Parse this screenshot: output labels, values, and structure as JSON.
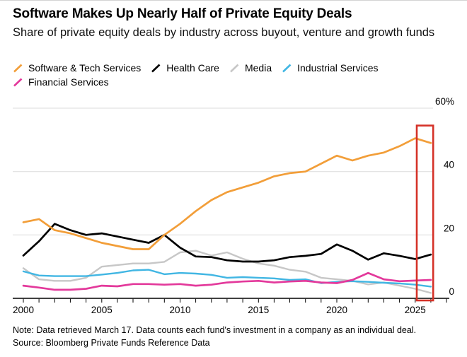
{
  "header": {
    "title": "Software Makes Up Nearly Half of Private Equity Deals",
    "subtitle": "Share of private equity deals by industry across buyout, venture and growth funds"
  },
  "legend": [
    {
      "label": "Software & Tech Services",
      "color": "#F29E39"
    },
    {
      "label": "Health Care",
      "color": "#000000"
    },
    {
      "label": "Media",
      "color": "#C7C7C7"
    },
    {
      "label": "Industrial Services",
      "color": "#41B6E3"
    },
    {
      "label": "Financial Services",
      "color": "#E3399B"
    }
  ],
  "chart_data": {
    "type": "line",
    "x": [
      2000,
      2001,
      2002,
      2003,
      2004,
      2005,
      2006,
      2007,
      2008,
      2009,
      2010,
      2011,
      2012,
      2013,
      2014,
      2015,
      2016,
      2017,
      2018,
      2019,
      2020,
      2021,
      2022,
      2023,
      2024,
      2025,
      2026
    ],
    "series": [
      {
        "name": "Software & Tech Services",
        "color": "#F29E39",
        "width": 2.7,
        "values": [
          24,
          25,
          21.5,
          20.5,
          19,
          17.5,
          16.5,
          15.5,
          15.5,
          20,
          23.5,
          27.5,
          31,
          33.5,
          35,
          36.5,
          38.5,
          39.5,
          40,
          42.5,
          45,
          43.5,
          45,
          46,
          48,
          50.5,
          49
        ]
      },
      {
        "name": "Health Care",
        "color": "#000000",
        "width": 2.7,
        "values": [
          13.5,
          18,
          23.5,
          21.5,
          20,
          20.5,
          19.5,
          18.5,
          17.5,
          20,
          16,
          13.2,
          13,
          12,
          11.6,
          11.6,
          12,
          13,
          13.4,
          14,
          17,
          15,
          12.2,
          14.2,
          13.4,
          12.4,
          13.8
        ]
      },
      {
        "name": "Media",
        "color": "#C7C7C7",
        "width": 2.4,
        "values": [
          9.5,
          6,
          5.5,
          5.5,
          6.5,
          10,
          10.5,
          11,
          11,
          11.5,
          14.5,
          15,
          13.5,
          14.5,
          12.5,
          11,
          10.3,
          9,
          8.4,
          6.5,
          6,
          5.5,
          4.4,
          5,
          4,
          3,
          1.7
        ]
      },
      {
        "name": "Industrial Services",
        "color": "#41B6E3",
        "width": 2.4,
        "values": [
          8.5,
          7.2,
          7,
          7,
          7,
          7.5,
          8,
          8.8,
          9,
          7.6,
          8,
          7.8,
          7.4,
          6.5,
          6.7,
          6.5,
          6.3,
          5.8,
          6,
          4.8,
          5.2,
          5.4,
          5.2,
          4.9,
          4.7,
          4.3,
          3.7
        ]
      },
      {
        "name": "Financial Services",
        "color": "#E3399B",
        "width": 2.7,
        "values": [
          4,
          3.4,
          2.7,
          2.7,
          3,
          4,
          3.8,
          4.5,
          4.5,
          4.3,
          4.5,
          4,
          4.3,
          5,
          5.3,
          5.5,
          5,
          5.3,
          5.5,
          5,
          4.8,
          5.8,
          8,
          6,
          5.4,
          5.6,
          5.8
        ]
      }
    ],
    "title": "Software Makes Up Nearly Half of Private Equity Deals",
    "xlabel": "",
    "ylabel": "",
    "ylim": [
      0,
      60
    ],
    "grid": "horizontal",
    "legend_position": "top",
    "y_ticks": [
      {
        "label": "60%",
        "value": 60
      },
      {
        "label": "40",
        "value": 40
      },
      {
        "label": "20",
        "value": 20
      },
      {
        "label": "0",
        "value": 0
      }
    ],
    "x_ticks_labeled": [
      {
        "label": "2000",
        "year": 2000
      },
      {
        "label": "2005",
        "year": 2005
      },
      {
        "label": "2010",
        "year": 2010
      },
      {
        "label": "2015",
        "year": 2015
      },
      {
        "label": "2020",
        "year": 2020
      },
      {
        "label": "2025",
        "year": 2025
      }
    ],
    "highlight_box": {
      "from_year": 2025.1,
      "to_year": 2026.15,
      "top_value": 54.5,
      "color": "#D53228"
    }
  },
  "footer": {
    "note": "Note: Data retrieved March 17. Data counts each fund's investment in a company as an individual deal.",
    "source": "Source: Bloomberg Private Funds Reference Data"
  }
}
